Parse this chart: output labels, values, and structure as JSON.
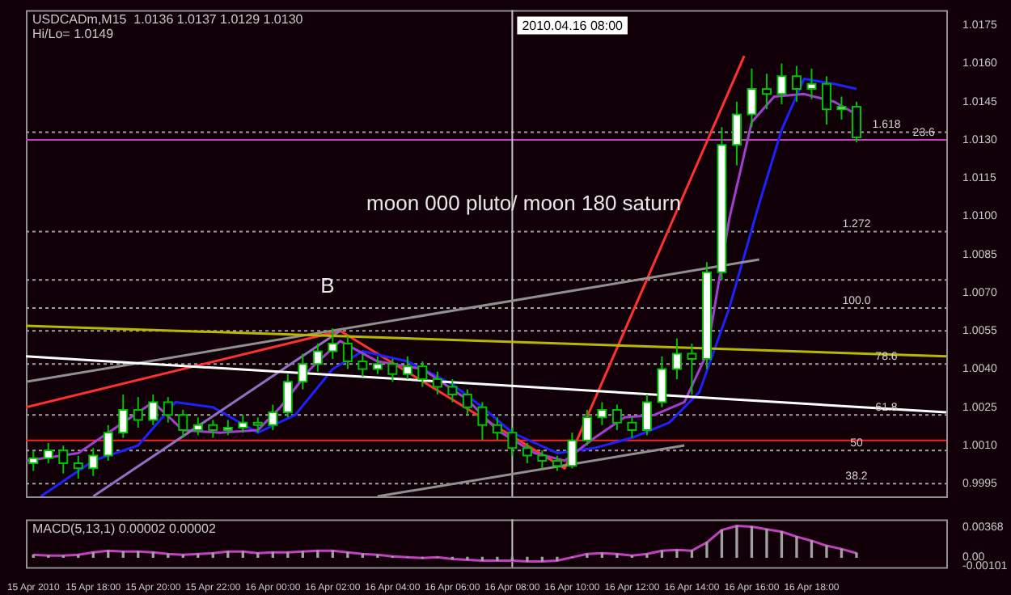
{
  "chart_data": [
    {
      "type": "candlestick",
      "title": "USDCADm,M15  1.0136 1.0137 1.0129 1.0130",
      "subtitle": "Hi/Lo= 1.0149",
      "annotations": [
        "moon 000 pluto/ moon 180 saturn",
        "B",
        {
          "text": "1.618",
          "x": "2010-04-16T20:30",
          "y": 1.0133
        },
        {
          "text": "23.6",
          "x": "2010-04-16T21:45",
          "y": 1.013
        },
        {
          "text": "1.272",
          "x": "2010-04-16T19:30",
          "y": 1.0094
        },
        {
          "text": "100.0",
          "x": "2010-04-16T19:30",
          "y": 1.0064
        },
        {
          "text": "78.6",
          "x": "2010-04-16T20:30",
          "y": 1.0042
        },
        {
          "text": "61.8",
          "x": "2010-04-16T20:30",
          "y": 1.0022
        },
        {
          "text": "50",
          "x": "2010-04-16T19:30",
          "y": 1.0008
        },
        {
          "text": "38.2",
          "x": "2010-04-16T19:30",
          "y": 0.9995
        }
      ],
      "xlim": [
        "2010-04-15T15:45",
        "2010-04-16T22:30"
      ],
      "ylim": [
        0.999,
        1.0181
      ],
      "tick_labels": "y",
      "yticks": [
        {
          "value": 0.9995,
          "label": "0.9995"
        },
        {
          "value": 1.001,
          "label": "1.0010"
        },
        {
          "value": 1.0025,
          "label": "1.0025"
        },
        {
          "value": 1.004,
          "label": "1.0040"
        },
        {
          "value": 1.0055,
          "label": "1.0055"
        },
        {
          "value": 1.007,
          "label": "1.0070"
        },
        {
          "value": 1.0085,
          "label": "1.0085"
        },
        {
          "value": 1.01,
          "label": "1.0100"
        },
        {
          "value": 1.0115,
          "label": "1.0115"
        },
        {
          "value": 1.013,
          "label": "1.0130"
        },
        {
          "value": 1.0145,
          "label": "1.0145"
        },
        {
          "value": 1.016,
          "label": "1.0160"
        },
        {
          "value": 1.0175,
          "label": "1.0175"
        }
      ],
      "legend": false,
      "ref_lines": [
        {
          "axis": "y",
          "value": 1.0133,
          "color": "#a0a0a0",
          "line_style": "dotted"
        },
        {
          "axis": "y",
          "value": 1.013,
          "color": "#c040c0",
          "line_style": "solid"
        },
        {
          "axis": "y",
          "value": 1.0094,
          "color": "#a0a0a0",
          "line_style": "dotted"
        },
        {
          "axis": "y",
          "value": 1.0075,
          "color": "#a0a0a0",
          "line_style": "dotted"
        },
        {
          "axis": "y",
          "value": 1.0064,
          "color": "#a0a0a0",
          "line_style": "dotted"
        },
        {
          "axis": "y",
          "value": 1.0055,
          "color": "#a0a0a0",
          "line_style": "dotted"
        },
        {
          "axis": "y",
          "value": 1.0042,
          "color": "#a0a0a0",
          "line_style": "dotted"
        },
        {
          "axis": "y",
          "value": 1.0022,
          "color": "#a0a0a0",
          "line_style": "dotted"
        },
        {
          "axis": "y",
          "value": 1.0008,
          "color": "#a0a0a0",
          "line_style": "dotted"
        },
        {
          "axis": "y",
          "value": 0.9995,
          "color": "#a0a0a0",
          "line_style": "dotted"
        },
        {
          "axis": "y",
          "value": 1.0012,
          "color": "#ff2020",
          "line_style": "solid"
        },
        {
          "axis": "x",
          "value": "2010-04-16T08:00",
          "label": "2010.04.16 08:00",
          "color": "#c0c0c0",
          "line_style": "solid"
        }
      ],
      "series": [
        {
          "type": "line",
          "color": "#ffffff",
          "x": [
            "2010-04-15T15:45",
            "2010-04-16T22:30"
          ],
          "values": [
            1.0045,
            1.0023
          ]
        },
        {
          "type": "line",
          "color": "#b8b800",
          "x": [
            "2010-04-15T15:45",
            "2010-04-16T22:30"
          ],
          "values": [
            1.0057,
            1.0045
          ]
        },
        {
          "type": "line",
          "color": "#909090",
          "x": [
            "2010-04-15T15:45",
            "2010-04-16T16:15"
          ],
          "values": [
            1.0035,
            1.0083
          ]
        },
        {
          "type": "line",
          "color": "#909090",
          "x": [
            "2010-04-16T03:30",
            "2010-04-16T13:45"
          ],
          "values": [
            0.999,
            1.001
          ]
        },
        {
          "type": "line",
          "color": "#9070c0",
          "x": [
            "2010-04-15T18:00",
            "2010-04-16T02:15"
          ],
          "values": [
            0.999,
            1.0055
          ]
        },
        {
          "type": "line",
          "color": "#a040d0",
          "x": [
            "2010-04-15T15:45",
            "2010-04-15T17:30",
            "2010-04-15T19:00",
            "2010-04-15T20:00",
            "2010-04-15T21:00",
            "2010-04-15T22:15",
            "2010-04-15T23:30",
            "2010-04-16T00:15",
            "2010-04-16T01:15",
            "2010-04-16T02:15",
            "2010-04-16T03:30",
            "2010-04-16T05:00",
            "2010-04-16T06:30",
            "2010-04-16T07:30",
            "2010-04-16T08:45",
            "2010-04-16T09:45",
            "2010-04-16T10:45",
            "2010-04-16T11:45",
            "2010-04-16T12:45",
            "2010-04-16T13:45",
            "2010-04-16T14:30",
            "2010-04-16T15:15",
            "2010-04-16T16:00",
            "2010-04-16T16:45",
            "2010-04-16T17:45",
            "2010-04-16T18:45",
            "2010-04-16T19:30"
          ],
          "values": [
            1.0004,
            1.0007,
            1.0019,
            1.0027,
            1.0016,
            1.0015,
            1.0016,
            1.0025,
            1.004,
            1.0051,
            1.0043,
            1.004,
            1.0028,
            1.0016,
            1.0007,
            1.0004,
            1.0013,
            1.0021,
            1.0022,
            1.0027,
            1.0046,
            1.0099,
            1.0137,
            1.0147,
            1.0148,
            1.0145,
            1.014
          ]
        },
        {
          "type": "line",
          "color": "#2020ff",
          "x": [
            "2010-04-15T16:15",
            "2010-04-15T18:00",
            "2010-04-15T19:30",
            "2010-04-15T20:45",
            "2010-04-15T22:00",
            "2010-04-15T23:30",
            "2010-04-16T00:45",
            "2010-04-16T02:00",
            "2010-04-16T03:00",
            "2010-04-16T04:30",
            "2010-04-16T06:00",
            "2010-04-16T07:00",
            "2010-04-16T08:00",
            "2010-04-16T09:30",
            "2010-04-16T10:45",
            "2010-04-16T12:00",
            "2010-04-16T13:15",
            "2010-04-16T14:15",
            "2010-04-16T15:15",
            "2010-04-16T16:15",
            "2010-04-16T17:00",
            "2010-04-16T17:45",
            "2010-04-16T18:45",
            "2010-04-16T19:30"
          ],
          "values": [
            0.999,
            1.0004,
            1.001,
            1.0027,
            1.0025,
            1.0015,
            1.0022,
            1.004,
            1.0047,
            1.0043,
            1.0034,
            1.0025,
            1.0015,
            1.0007,
            1.0009,
            1.0013,
            1.0019,
            1.0031,
            1.0064,
            1.0105,
            1.0134,
            1.0154,
            1.0152,
            1.015
          ]
        },
        {
          "type": "line",
          "color": "#ff3030",
          "x": [
            "2010-04-15T15:45",
            "2010-04-16T02:15",
            "2010-04-16T09:45",
            "2010-04-16T15:45"
          ],
          "values": [
            1.0025,
            1.0055,
            1.0001,
            1.0163
          ]
        },
        {
          "color": "#00c000",
          "colors": [
            "#ffffff",
            "#ffffff",
            "#000000",
            "#000000",
            "#ffffff",
            "#ffffff",
            "#ffffff",
            "#000000",
            "#ffffff",
            "#000000",
            "#000000",
            "#ffffff",
            "#000000",
            "#ffffff",
            "#ffffff",
            "#000000",
            "#ffffff",
            "#ffffff",
            "#ffffff",
            "#ffffff",
            "#ffffff",
            "#000000",
            "#000000",
            "#ffffff",
            "#000000",
            "#ffffff",
            "#000000",
            "#000000",
            "#000000",
            "#000000",
            "#000000",
            "#000000",
            "#000000",
            "#000000",
            "#000000",
            "#000000",
            "#ffffff",
            "#ffffff",
            "#ffffff",
            "#000000",
            "#000000",
            "#ffffff",
            "#ffffff",
            "#ffffff",
            "#000000",
            "#ffffff",
            "#ffffff",
            "#ffffff",
            "#ffffff",
            "#000000",
            "#ffffff",
            "#000000",
            "#ffffff",
            "#000000",
            "#ffffff",
            "#000000"
          ],
          "x": [
            "2010-04-15T16:00",
            "2010-04-15T16:30",
            "2010-04-15T17:00",
            "2010-04-15T17:30",
            "2010-04-15T18:00",
            "2010-04-15T18:30",
            "2010-04-15T19:00",
            "2010-04-15T19:30",
            "2010-04-15T20:00",
            "2010-04-15T20:30",
            "2010-04-15T21:00",
            "2010-04-15T21:30",
            "2010-04-15T22:00",
            "2010-04-15T22:30",
            "2010-04-15T23:00",
            "2010-04-15T23:30",
            "2010-04-16T00:00",
            "2010-04-16T00:30",
            "2010-04-16T01:00",
            "2010-04-16T01:30",
            "2010-04-16T02:00",
            "2010-04-16T02:30",
            "2010-04-16T03:00",
            "2010-04-16T03:30",
            "2010-04-16T04:00",
            "2010-04-16T04:30",
            "2010-04-16T05:00",
            "2010-04-16T05:30",
            "2010-04-16T06:00",
            "2010-04-16T06:30",
            "2010-04-16T07:00",
            "2010-04-16T07:30",
            "2010-04-16T08:00",
            "2010-04-16T08:30",
            "2010-04-16T09:00",
            "2010-04-16T09:30",
            "2010-04-16T10:00",
            "2010-04-16T10:30",
            "2010-04-16T11:00",
            "2010-04-16T11:30",
            "2010-04-16T12:00",
            "2010-04-16T12:30",
            "2010-04-16T13:00",
            "2010-04-16T13:30",
            "2010-04-16T14:00",
            "2010-04-16T14:30",
            "2010-04-16T15:00",
            "2010-04-16T15:30",
            "2010-04-16T16:00",
            "2010-04-16T16:30",
            "2010-04-16T17:00",
            "2010-04-16T17:30",
            "2010-04-16T18:00",
            "2010-04-16T18:30",
            "2010-04-16T19:00",
            "2010-04-16T19:30"
          ],
          "ohlc": [
            [
              1.0003,
              1.0008,
              1.0,
              1.0005
            ],
            [
              1.0005,
              1.0011,
              1.0003,
              1.0008
            ],
            [
              1.0008,
              1.001,
              0.9999,
              1.0003
            ],
            [
              1.0003,
              1.0006,
              0.9997,
              1.0001
            ],
            [
              1.0001,
              1.0009,
              0.9998,
              1.0006
            ],
            [
              1.0006,
              1.0018,
              1.0004,
              1.0015
            ],
            [
              1.0015,
              1.003,
              1.0013,
              1.0024
            ],
            [
              1.0024,
              1.0029,
              1.0017,
              1.002
            ],
            [
              1.002,
              1.003,
              1.0018,
              1.0027
            ],
            [
              1.0027,
              1.0029,
              1.0019,
              1.0022
            ],
            [
              1.0022,
              1.0024,
              1.0013,
              1.0016
            ],
            [
              1.0016,
              1.0021,
              1.0014,
              1.0018
            ],
            [
              1.0018,
              1.002,
              1.0013,
              1.0016
            ],
            [
              1.0016,
              1.002,
              1.0014,
              1.0017
            ],
            [
              1.0017,
              1.0022,
              1.0015,
              1.0019
            ],
            [
              1.0019,
              1.0021,
              1.0015,
              1.0018
            ],
            [
              1.0018,
              1.0026,
              1.0016,
              1.0023
            ],
            [
              1.0023,
              1.0038,
              1.0021,
              1.0035
            ],
            [
              1.0035,
              1.0046,
              1.0032,
              1.0042
            ],
            [
              1.0042,
              1.005,
              1.0039,
              1.0047
            ],
            [
              1.0047,
              1.0056,
              1.0044,
              1.005
            ],
            [
              1.005,
              1.0053,
              1.004,
              1.0043
            ],
            [
              1.0043,
              1.0046,
              1.0037,
              1.004
            ],
            [
              1.004,
              1.0045,
              1.0038,
              1.0042
            ],
            [
              1.0042,
              1.0044,
              1.0035,
              1.0038
            ],
            [
              1.0038,
              1.0045,
              1.0036,
              1.0041
            ],
            [
              1.0041,
              1.0043,
              1.0033,
              1.0036
            ],
            [
              1.0036,
              1.0039,
              1.003,
              1.0033
            ],
            [
              1.0033,
              1.0036,
              1.0027,
              1.003
            ],
            [
              1.003,
              1.0032,
              1.0022,
              1.0025
            ],
            [
              1.0025,
              1.0027,
              1.0012,
              1.0018
            ],
            [
              1.0018,
              1.0021,
              1.0012,
              1.0015
            ],
            [
              1.0015,
              1.0017,
              1.0006,
              1.0009
            ],
            [
              1.0009,
              1.0011,
              1.0003,
              1.0006
            ],
            [
              1.0006,
              1.0008,
              1.0001,
              1.0004
            ],
            [
              1.0004,
              1.0006,
              1.0,
              1.0002
            ],
            [
              1.0002,
              1.0015,
              1.0001,
              1.0012
            ],
            [
              1.0012,
              1.0024,
              1.001,
              1.0021
            ],
            [
              1.0021,
              1.0027,
              1.0018,
              1.0024
            ],
            [
              1.0024,
              1.0026,
              1.0016,
              1.0019
            ],
            [
              1.0019,
              1.0021,
              1.0013,
              1.0016
            ],
            [
              1.0016,
              1.003,
              1.0014,
              1.0027
            ],
            [
              1.0027,
              1.0045,
              1.0025,
              1.004
            ],
            [
              1.004,
              1.0052,
              1.0036,
              1.0046
            ],
            [
              1.0046,
              1.005,
              1.003,
              1.0044
            ],
            [
              1.0044,
              1.0082,
              1.004,
              1.0078
            ],
            [
              1.0078,
              1.0135,
              1.0075,
              1.0128
            ],
            [
              1.0128,
              1.0145,
              1.012,
              1.014
            ],
            [
              1.014,
              1.0158,
              1.0135,
              1.015
            ],
            [
              1.015,
              1.0156,
              1.0142,
              1.0148
            ],
            [
              1.0148,
              1.016,
              1.0144,
              1.0155
            ],
            [
              1.0155,
              1.0159,
              1.0145,
              1.015
            ],
            [
              1.015,
              1.0158,
              1.0146,
              1.0152
            ],
            [
              1.0152,
              1.0155,
              1.0136,
              1.0142
            ],
            [
              1.0142,
              1.0147,
              1.0138,
              1.0143
            ],
            [
              1.0143,
              1.0145,
              1.0129,
              1.0131
            ]
          ]
        }
      ]
    },
    {
      "type": "bar",
      "title": "MACD(5,13,1) 0.00002 0.00002",
      "legend": false,
      "xlim": [
        "2010-04-15T15:45",
        "2010-04-16T22:30"
      ],
      "ylim": [
        -0.0012,
        0.0046
      ],
      "xticks": [
        {
          "value": "2010-04-15T16:00",
          "label": "15 Apr 2010"
        },
        {
          "value": "2010-04-15T18:00",
          "label": "15 Apr 18:00"
        },
        {
          "value": "2010-04-15T20:00",
          "label": "15 Apr 20:00"
        },
        {
          "value": "2010-04-15T22:00",
          "label": "15 Apr 22:00"
        },
        {
          "value": "2010-04-16T00:00",
          "label": "16 Apr 00:00"
        },
        {
          "value": "2010-04-16T02:00",
          "label": "16 Apr 02:00"
        },
        {
          "value": "2010-04-16T04:00",
          "label": "16 Apr 04:00"
        },
        {
          "value": "2010-04-16T06:00",
          "label": "16 Apr 06:00"
        },
        {
          "value": "2010-04-16T08:00",
          "label": "16 Apr 08:00"
        },
        {
          "value": "2010-04-16T10:00",
          "label": "16 Apr 10:00"
        },
        {
          "value": "2010-04-16T12:00",
          "label": "16 Apr 12:00"
        },
        {
          "value": "2010-04-16T14:00",
          "label": "16 Apr 14:00"
        },
        {
          "value": "2010-04-16T16:00",
          "label": "16 Apr 16:00"
        },
        {
          "value": "2010-04-16T18:00",
          "label": "16 Apr 18:00"
        }
      ],
      "yticks": [
        {
          "value": -0.00101,
          "label": "-0.00101"
        },
        {
          "value": 0,
          "label": "0.00"
        },
        {
          "value": 0.00368,
          "label": "0.00368"
        }
      ],
      "ref_lines": [
        {
          "axis": "x",
          "value": "2010-04-16T08:00",
          "color": "#c0c0c0",
          "line_style": "solid"
        }
      ],
      "x": [
        "2010-04-15T16:00",
        "2010-04-15T16:30",
        "2010-04-15T17:00",
        "2010-04-15T17:30",
        "2010-04-15T18:00",
        "2010-04-15T18:30",
        "2010-04-15T19:00",
        "2010-04-15T19:30",
        "2010-04-15T20:00",
        "2010-04-15T20:30",
        "2010-04-15T21:00",
        "2010-04-15T21:30",
        "2010-04-15T22:00",
        "2010-04-15T22:30",
        "2010-04-15T23:00",
        "2010-04-15T23:30",
        "2010-04-16T00:00",
        "2010-04-16T00:30",
        "2010-04-16T01:00",
        "2010-04-16T01:30",
        "2010-04-16T02:00",
        "2010-04-16T02:30",
        "2010-04-16T03:00",
        "2010-04-16T03:30",
        "2010-04-16T04:00",
        "2010-04-16T04:30",
        "2010-04-16T05:00",
        "2010-04-16T05:30",
        "2010-04-16T06:00",
        "2010-04-16T06:30",
        "2010-04-16T07:00",
        "2010-04-16T07:30",
        "2010-04-16T08:00",
        "2010-04-16T08:30",
        "2010-04-16T09:00",
        "2010-04-16T09:30",
        "2010-04-16T10:00",
        "2010-04-16T10:30",
        "2010-04-16T11:00",
        "2010-04-16T11:30",
        "2010-04-16T12:00",
        "2010-04-16T12:30",
        "2010-04-16T13:00",
        "2010-04-16T13:30",
        "2010-04-16T14:00",
        "2010-04-16T14:30",
        "2010-04-16T15:00",
        "2010-04-16T15:30",
        "2010-04-16T16:00",
        "2010-04-16T16:30",
        "2010-04-16T17:00",
        "2010-04-16T17:30",
        "2010-04-16T18:00",
        "2010-04-16T18:30",
        "2010-04-16T19:00",
        "2010-04-16T19:30"
      ],
      "series": [
        {
          "color": "#a0a0a0",
          "values": [
            0.0003,
            0.0002,
            0.0002,
            0.0003,
            0.0006,
            0.0008,
            0.0007,
            0.0007,
            0.0006,
            0.0004,
            0.0003,
            0.0004,
            0.0005,
            0.0007,
            0.0007,
            0.0005,
            0.0006,
            0.0006,
            0.0007,
            0.0008,
            0.0008,
            0.0006,
            0.0004,
            0.0003,
            0.0001,
            0.0,
            -0.0001,
            0.0,
            -0.0002,
            -0.0003,
            -0.0004,
            -0.0004,
            -0.0004,
            -0.0005,
            -0.0005,
            -0.0004,
            0.0,
            0.0004,
            0.0005,
            0.0004,
            0.0002,
            0.0004,
            0.0008,
            0.0009,
            0.0008,
            0.0018,
            0.0033,
            0.0038,
            0.0037,
            0.0034,
            0.0031,
            0.0025,
            0.002,
            0.0014,
            0.001,
            0.0005
          ]
        },
        {
          "type": "line",
          "color": "#c040c0",
          "values": [
            0.0003,
            0.0002,
            0.0002,
            0.0003,
            0.0006,
            0.0008,
            0.0007,
            0.0007,
            0.0006,
            0.0004,
            0.0003,
            0.0004,
            0.0005,
            0.0007,
            0.0007,
            0.0005,
            0.0006,
            0.0006,
            0.0007,
            0.0008,
            0.0008,
            0.0006,
            0.0004,
            0.0003,
            0.0001,
            0.0,
            -0.0001,
            0.0,
            -0.0002,
            -0.0003,
            -0.0004,
            -0.0004,
            -0.0004,
            -0.0005,
            -0.0005,
            -0.0004,
            0.0,
            0.0004,
            0.0005,
            0.0004,
            0.0002,
            0.0004,
            0.0008,
            0.0009,
            0.0008,
            0.0018,
            0.0033,
            0.0038,
            0.0037,
            0.0034,
            0.0031,
            0.0025,
            0.002,
            0.0014,
            0.001,
            0.0005
          ]
        }
      ]
    }
  ]
}
